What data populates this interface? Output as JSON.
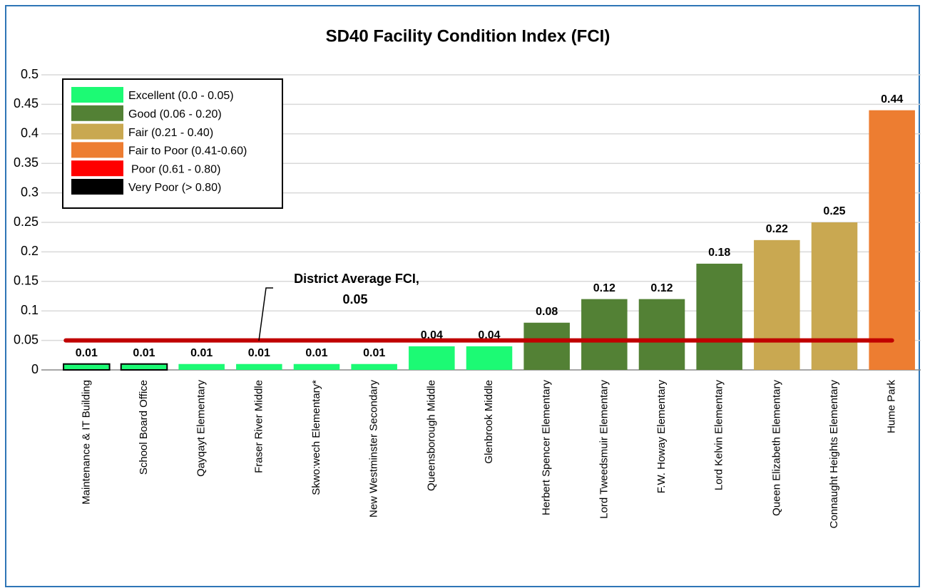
{
  "chart_data": {
    "type": "bar",
    "title": "SD40 Facility Condition Index (FCI)",
    "categories": [
      "Maintenance & IT Building",
      "School Board Office",
      "Qayqayt Elementary",
      "Fraser River Middle",
      "Skwo:wech Elementary*",
      "New Westminster Secondary",
      "Queensborough Middle",
      "Glenbrook Middle",
      "Herbert Spencer Elementary",
      "Lord Tweedsmuir Elementary",
      "F.W. Howay Elementary",
      "Lord Kelvin Elementary",
      "Queen Elizabeth Elementary",
      "Connaught Heights Elementary",
      "Hume Park"
    ],
    "values": [
      0.01,
      0.01,
      0.01,
      0.01,
      0.01,
      0.01,
      0.04,
      0.04,
      0.08,
      0.12,
      0.12,
      0.18,
      0.22,
      0.25,
      0.44
    ],
    "colors": [
      "#1cfa74",
      "#1cfa74",
      "#1cfa74",
      "#1cfa74",
      "#1cfa74",
      "#1cfa74",
      "#1cfa74",
      "#1cfa74",
      "#538135",
      "#538135",
      "#538135",
      "#538135",
      "#c9a851",
      "#c9a851",
      "#ed7d31"
    ],
    "edgecolors": [
      "#000000",
      "#000000",
      null,
      null,
      null,
      null,
      null,
      null,
      null,
      null,
      null,
      null,
      null,
      null,
      null
    ],
    "ylim": [
      0,
      0.5
    ],
    "yticks": [
      0,
      0.05,
      0.1,
      0.15,
      0.2,
      0.25,
      0.3,
      0.35,
      0.4,
      0.45,
      0.5
    ],
    "grid": true,
    "legend_position": "upper left",
    "legend": [
      {
        "label": "Excellent (0.0 - 0.05)",
        "color": "#1cfa74"
      },
      {
        "label": "Good (0.06 - 0.20)",
        "color": "#538135"
      },
      {
        "label": "Fair (0.21 - 0.40)",
        "color": "#c9a851"
      },
      {
        "label": "Fair to Poor (0.41-0.60)",
        "color": "#ed7d31"
      },
      {
        "label": "Poor (0.61 - 0.80)",
        "color": "#ff0000"
      },
      {
        "label": "Very Poor (> 0.80)",
        "color": "#000000"
      }
    ],
    "reference_line": {
      "value": 0.05,
      "color": "#c00000",
      "annotation": [
        "District Average FCI,",
        "0.05"
      ]
    }
  }
}
